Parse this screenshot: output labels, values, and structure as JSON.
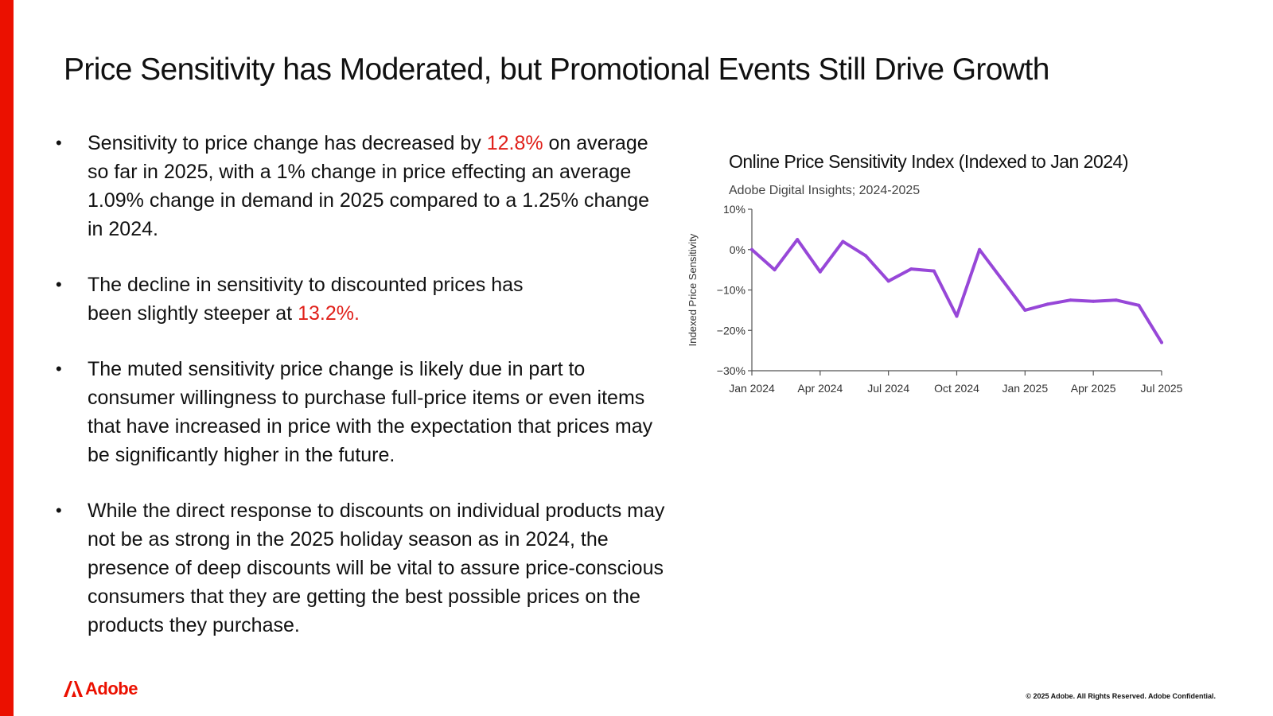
{
  "slide": {
    "title": "Price Sensitivity has Moderated, but Promotional Events Still Drive Growth"
  },
  "bullets": [
    {
      "pre": "Sensitivity to price change has decreased by ",
      "highlight": "12.8%",
      "post": " on average so far in 2025, with a 1% change in price effecting an average 1.09% change in demand in 2025 compared to a 1.25% change in 2024."
    },
    {
      "line1": "The decline in sensitivity to discounted prices has",
      "line2_pre": "been slightly steeper at ",
      "highlight": "13.2%."
    },
    {
      "text": "The muted sensitivity price change is likely due in part to consumer willingness to purchase full-price items or even items that have increased in price with the expectation that prices may be significantly higher in the future."
    },
    {
      "text": "While the direct response to discounts on individual products may not be as strong in the 2025 holiday season as in 2024, the presence of deep discounts will be vital to assure price-conscious consumers that they are getting the best possible prices on the products they purchase."
    }
  ],
  "bullet_char": "•",
  "footer": {
    "logo_text": "Adobe",
    "copyright": "© 2025 Adobe. All Rights Reserved. Adobe Confidential."
  },
  "colors": {
    "brand_red": "#eb1000",
    "highlight_red": "#e0201a",
    "line_purple": "#9747d8"
  },
  "chart_data": {
    "type": "line",
    "title": "Online Price Sensitivity Index (Indexed to Jan 2024)",
    "subtitle": "Adobe Digital Insights; 2024-2025",
    "xlabel": "",
    "ylabel": "Indexed Price Sensitivity",
    "ylim": [
      -30,
      10
    ],
    "yticks": [
      10,
      0,
      -10,
      -20,
      -30
    ],
    "ytick_labels": [
      "10%",
      "0%",
      "−10%",
      "−20%",
      "−30%"
    ],
    "xlim": [
      0,
      18
    ],
    "xticks": [
      0,
      3,
      6,
      9,
      12,
      15,
      18
    ],
    "xtick_labels": [
      "Jan 2024",
      "Apr 2024",
      "Jul 2024",
      "Oct 2024",
      "Jan 2025",
      "Apr 2025",
      "Jul 2025"
    ],
    "grid": false,
    "series": [
      {
        "name": "Online Price Sensitivity Index",
        "x": [
          0,
          1,
          2,
          3,
          4,
          5,
          6,
          7,
          8,
          9,
          10,
          11,
          12,
          13,
          14,
          15,
          16,
          17,
          18
        ],
        "values": [
          0,
          -5,
          2.5,
          -5.5,
          2,
          -1.5,
          -7.8,
          -4.8,
          -5.3,
          -16.5,
          0,
          -7.5,
          -15,
          -13.5,
          -12.5,
          -12.8,
          -12.5,
          -13.8,
          -23
        ]
      }
    ]
  }
}
